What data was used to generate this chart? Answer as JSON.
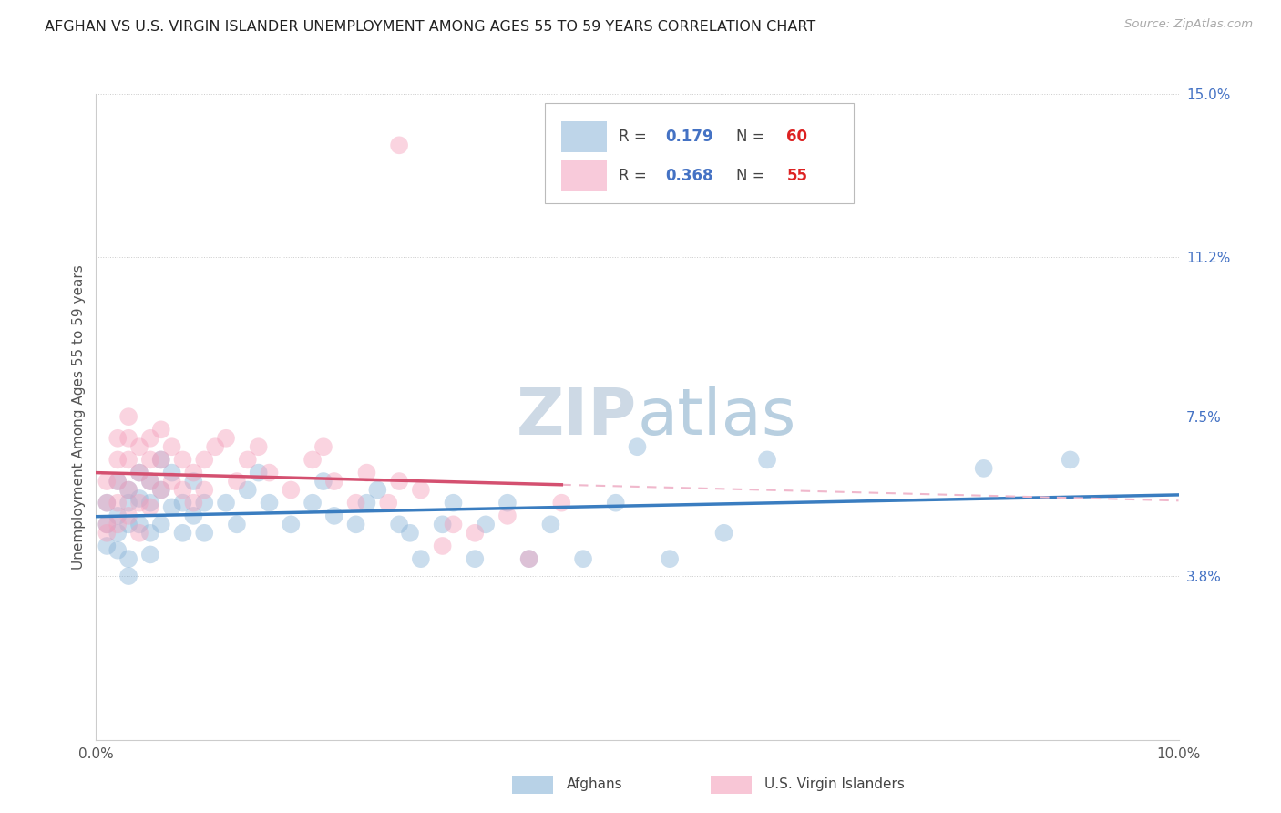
{
  "title": "AFGHAN VS U.S. VIRGIN ISLANDER UNEMPLOYMENT AMONG AGES 55 TO 59 YEARS CORRELATION CHART",
  "source": "Source: ZipAtlas.com",
  "ylabel": "Unemployment Among Ages 55 to 59 years",
  "xlim": [
    0.0,
    0.1
  ],
  "ylim": [
    0.0,
    0.15
  ],
  "xtick_positions": [
    0.0,
    0.02,
    0.04,
    0.06,
    0.08,
    0.1
  ],
  "xticklabels": [
    "0.0%",
    "",
    "",
    "",
    "",
    "10.0%"
  ],
  "right_ytick_positions": [
    0.038,
    0.075,
    0.112,
    0.15
  ],
  "right_yticklabels": [
    "3.8%",
    "7.5%",
    "11.2%",
    "15.0%"
  ],
  "afghans_R": "0.179",
  "afghans_N": "60",
  "vi_R": "0.368",
  "vi_N": "55",
  "color_afghan_fill": "#8ab4d8",
  "color_afghan_line": "#3a7dc0",
  "color_vi_fill": "#f4a0bc",
  "color_vi_line": "#d45070",
  "color_vi_dash": "#f0b8cc",
  "grid_color": "#cccccc",
  "watermark_color": "#cdd9e5",
  "background": "#ffffff",
  "afghans_x": [
    0.001,
    0.001,
    0.001,
    0.002,
    0.002,
    0.002,
    0.002,
    0.003,
    0.003,
    0.003,
    0.003,
    0.003,
    0.004,
    0.004,
    0.004,
    0.005,
    0.005,
    0.005,
    0.005,
    0.006,
    0.006,
    0.006,
    0.007,
    0.007,
    0.008,
    0.008,
    0.009,
    0.009,
    0.01,
    0.01,
    0.012,
    0.013,
    0.014,
    0.015,
    0.016,
    0.018,
    0.02,
    0.021,
    0.022,
    0.024,
    0.025,
    0.026,
    0.028,
    0.029,
    0.03,
    0.032,
    0.033,
    0.035,
    0.036,
    0.038,
    0.04,
    0.042,
    0.045,
    0.048,
    0.05,
    0.053,
    0.058,
    0.062,
    0.082,
    0.09
  ],
  "afghans_y": [
    0.05,
    0.055,
    0.045,
    0.06,
    0.052,
    0.048,
    0.044,
    0.058,
    0.055,
    0.05,
    0.042,
    0.038,
    0.062,
    0.056,
    0.05,
    0.06,
    0.055,
    0.048,
    0.043,
    0.065,
    0.058,
    0.05,
    0.062,
    0.054,
    0.055,
    0.048,
    0.06,
    0.052,
    0.055,
    0.048,
    0.055,
    0.05,
    0.058,
    0.062,
    0.055,
    0.05,
    0.055,
    0.06,
    0.052,
    0.05,
    0.055,
    0.058,
    0.05,
    0.048,
    0.042,
    0.05,
    0.055,
    0.042,
    0.05,
    0.055,
    0.042,
    0.05,
    0.042,
    0.055,
    0.068,
    0.042,
    0.048,
    0.065,
    0.063,
    0.065
  ],
  "vi_x": [
    0.001,
    0.001,
    0.001,
    0.001,
    0.002,
    0.002,
    0.002,
    0.002,
    0.002,
    0.003,
    0.003,
    0.003,
    0.003,
    0.003,
    0.004,
    0.004,
    0.004,
    0.004,
    0.005,
    0.005,
    0.005,
    0.005,
    0.006,
    0.006,
    0.006,
    0.007,
    0.007,
    0.008,
    0.008,
    0.009,
    0.009,
    0.01,
    0.01,
    0.011,
    0.012,
    0.013,
    0.014,
    0.015,
    0.016,
    0.018,
    0.02,
    0.021,
    0.022,
    0.024,
    0.025,
    0.027,
    0.028,
    0.03,
    0.032,
    0.033,
    0.035,
    0.038,
    0.04,
    0.043,
    0.028
  ],
  "vi_y": [
    0.06,
    0.055,
    0.05,
    0.048,
    0.07,
    0.065,
    0.06,
    0.055,
    0.05,
    0.075,
    0.07,
    0.065,
    0.058,
    0.052,
    0.068,
    0.062,
    0.055,
    0.048,
    0.07,
    0.065,
    0.06,
    0.054,
    0.072,
    0.065,
    0.058,
    0.068,
    0.06,
    0.065,
    0.058,
    0.062,
    0.055,
    0.065,
    0.058,
    0.068,
    0.07,
    0.06,
    0.065,
    0.068,
    0.062,
    0.058,
    0.065,
    0.068,
    0.06,
    0.055,
    0.062,
    0.055,
    0.06,
    0.058,
    0.045,
    0.05,
    0.048,
    0.052,
    0.042,
    0.055,
    0.138
  ]
}
